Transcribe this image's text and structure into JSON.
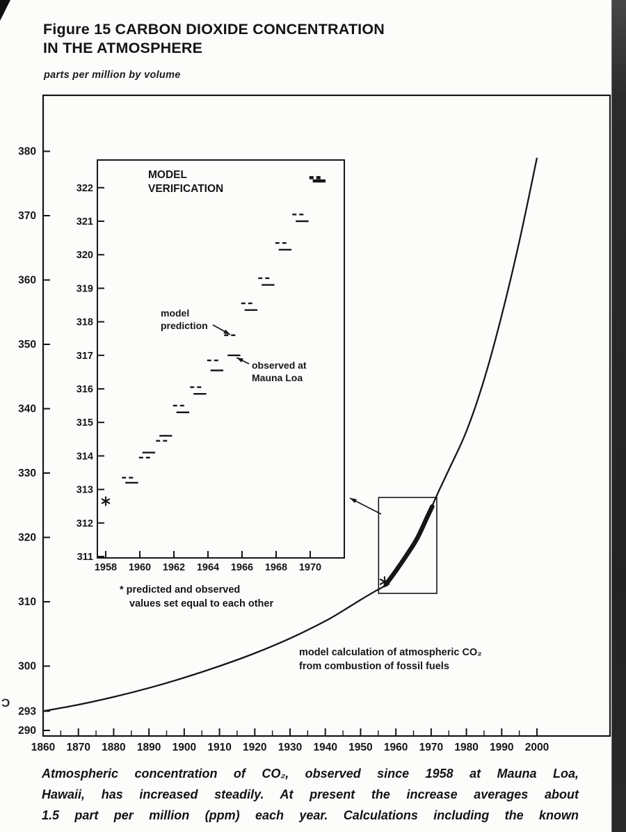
{
  "figure": {
    "title_line1": "Figure 15 CARBON DIOXIDE CONCENTRATION",
    "title_line2": "IN THE ATMOSPHERE",
    "units_label": "parts per million by volume",
    "caption_lines": [
      "Atmospheric concentration of CO₂, observed since 1958 at Mauna Loa,",
      "Hawaii, has increased steadily. At present the increase averages about",
      "1.5 part per million (ppm) each year. Calculations including the known"
    ]
  },
  "artifacts": {
    "stray_mark": "Ɔ"
  },
  "chart_data": [
    {
      "id": "main",
      "type": "line",
      "title": "Carbon dioxide concentration in the atmosphere, 1860–2000",
      "ylabel": "parts per million by volume",
      "xlim": [
        1860,
        2000
      ],
      "ylim": [
        290,
        388
      ],
      "grid": false,
      "x_ticks": [
        1860,
        1870,
        1880,
        1890,
        1900,
        1910,
        1920,
        1930,
        1940,
        1950,
        1960,
        1970,
        1980,
        1990,
        2000
      ],
      "y_ticks": [
        290,
        293,
        300,
        310,
        320,
        330,
        340,
        350,
        360,
        370,
        380
      ],
      "series": [
        {
          "name": "model calculation of atmospheric CO₂ from combustion of fossil fuels",
          "style": "solid-curve",
          "x": [
            1860,
            1870,
            1880,
            1890,
            1900,
            1910,
            1920,
            1930,
            1940,
            1945,
            1950,
            1954,
            1957,
            1960,
            1963,
            1966,
            1969,
            1972,
            1975,
            1980,
            1985,
            1990,
            1995,
            2000
          ],
          "y": [
            293,
            294,
            295.2,
            296.6,
            298.2,
            300,
            302,
            304.3,
            307,
            308.6,
            310.3,
            311.6,
            312.6,
            314.8,
            317.2,
            319.8,
            323.3,
            327,
            330.5,
            336.5,
            344.5,
            354.5,
            366,
            379
          ]
        },
        {
          "name": "observed at Mauna Loa (thick segment, 1958–1970)",
          "style": "thick",
          "x": [
            1957.2,
            1960,
            1963,
            1966,
            1969,
            1970.3
          ],
          "y": [
            312.7,
            314.8,
            317.2,
            319.8,
            323.3,
            324.8
          ]
        }
      ],
      "annotation_lines": [
        "model calculation of atmospheric CO₂",
        "from combustion of fossil fuels"
      ],
      "highlight_box": {
        "x0": 1955.1,
        "x1": 1971.6,
        "y0": 311.3,
        "y1": 326.2
      },
      "equal_marker": {
        "x": 1956.8,
        "y": 313.1,
        "symbol": "*"
      }
    },
    {
      "id": "inset",
      "type": "line",
      "title_lines": [
        "MODEL",
        "VERIFICATION"
      ],
      "xlim": [
        1957.4,
        1971.9
      ],
      "ylim": [
        311,
        322.9
      ],
      "grid": false,
      "x_ticks": [
        1958,
        1960,
        1962,
        1964,
        1966,
        1968,
        1970
      ],
      "y_ticks": [
        311,
        312,
        313,
        314,
        315,
        316,
        317,
        318,
        319,
        320,
        321,
        322
      ],
      "years": [
        1958,
        1959,
        1960,
        1961,
        1962,
        1963,
        1964,
        1965,
        1966,
        1967,
        1968,
        1969,
        1970
      ],
      "series": [
        {
          "name": "model prediction",
          "style": "dashed",
          "values": [
            312.65,
            313.35,
            313.95,
            314.45,
            315.5,
            316.05,
            316.85,
            317.6,
            318.55,
            319.3,
            320.35,
            321.2,
            322.3
          ]
        },
        {
          "name": "observed at Mauna Loa",
          "style": "solid",
          "values": [
            312.65,
            313.2,
            314.1,
            314.6,
            315.3,
            315.85,
            316.55,
            317.0,
            318.35,
            319.1,
            320.15,
            321.0,
            322.2
          ]
        }
      ],
      "annotations": {
        "model_lines": [
          "model",
          "prediction"
        ],
        "observed_lines": [
          "observed at",
          "Mauna Loa"
        ]
      },
      "footnote_lines": [
        "* predicted and observed",
        "values set equal to each other"
      ],
      "equal_marker": {
        "year": 1958,
        "value": 312.65,
        "symbol": "*"
      }
    }
  ]
}
